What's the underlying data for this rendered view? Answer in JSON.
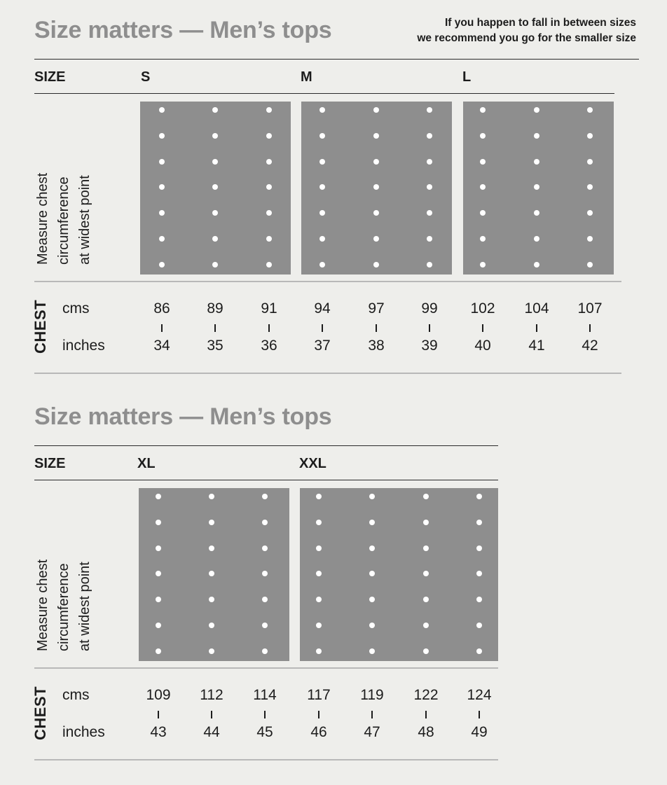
{
  "note": {
    "line1": "If you happen to fall in between sizes",
    "line2": "we recommend you go for the smaller size"
  },
  "charts": [
    {
      "title": "Size matters — Men’s tops",
      "size_header": "SIZE",
      "measure_label": [
        "Measure chest",
        "circumference",
        "at widest point"
      ],
      "chest_label": "CHEST",
      "cms_label": "cms",
      "inches_label": "inches",
      "sizes": [
        "S",
        "M",
        "L"
      ],
      "cms": [
        "86",
        "89",
        "91",
        "94",
        "97",
        "99",
        "102",
        "104",
        "107"
      ],
      "inches": [
        "34",
        "35",
        "36",
        "37",
        "38",
        "39",
        "40",
        "41",
        "42"
      ]
    },
    {
      "title": "Size matters — Men’s tops",
      "size_header": "SIZE",
      "measure_label": [
        "Measure chest",
        "circumference",
        "at widest point"
      ],
      "chest_label": "CHEST",
      "cms_label": "cms",
      "inches_label": "inches",
      "sizes": [
        "XL",
        "XXL"
      ],
      "cms": [
        "109",
        "112",
        "114",
        "117",
        "119",
        "122",
        "124"
      ],
      "inches": [
        "43",
        "44",
        "45",
        "46",
        "47",
        "48",
        "49"
      ]
    }
  ],
  "colors": {
    "background": "#eeeeeb",
    "panel": "#8e8e8e",
    "title": "#8e8e8e",
    "dot": "#ffffff",
    "text": "#1c1c1c"
  }
}
